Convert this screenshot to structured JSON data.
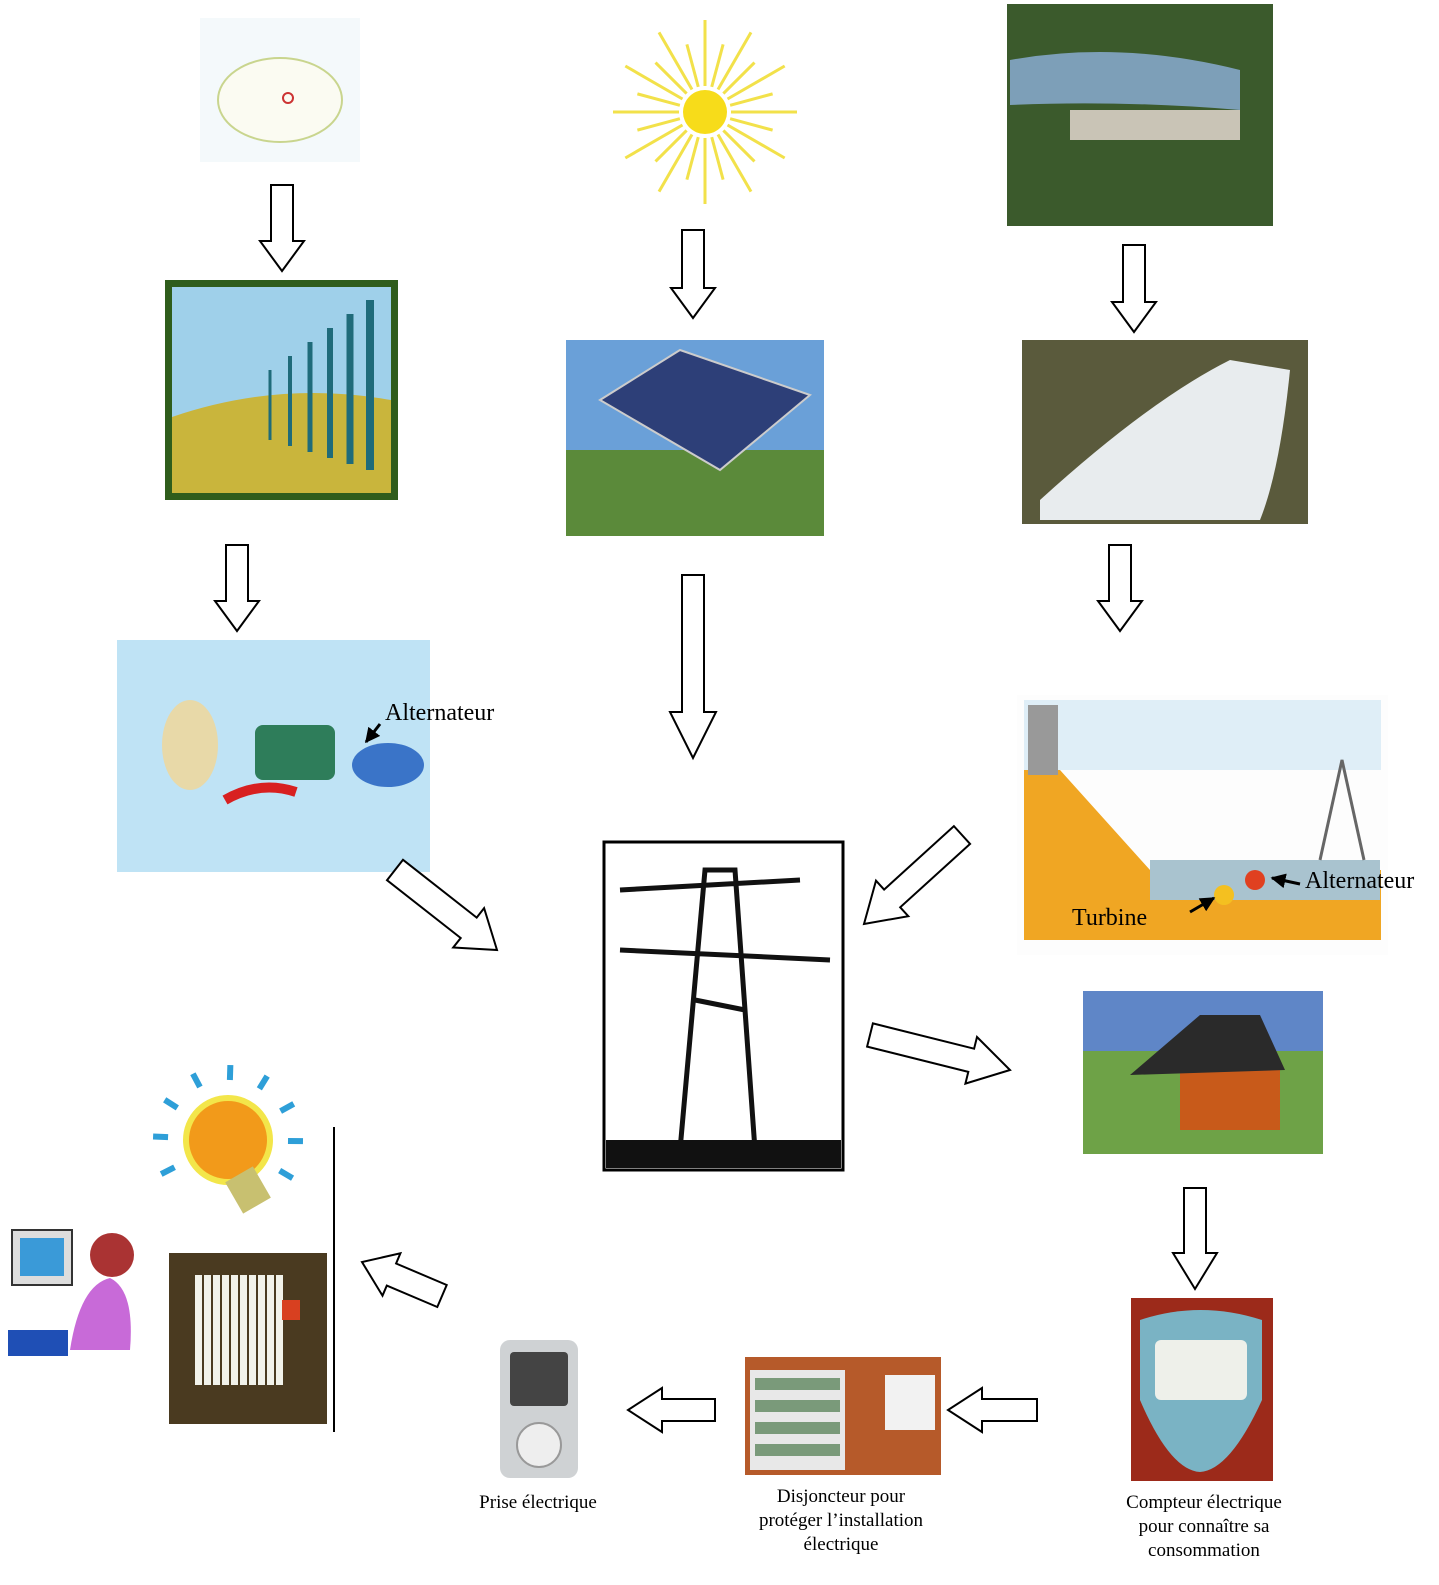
{
  "labels": {
    "alternateur_eolienne": "Alternateur",
    "alternateur_hydro": "Alternateur",
    "turbine": "Turbine"
  },
  "captions": {
    "prise": [
      "Prise électrique"
    ],
    "disjoncteur": [
      "Disjoncteur pour",
      "protéger l’installation",
      "électrique"
    ],
    "compteur": [
      "Compteur électrique",
      "pour connaître sa",
      "consommation"
    ]
  }
}
